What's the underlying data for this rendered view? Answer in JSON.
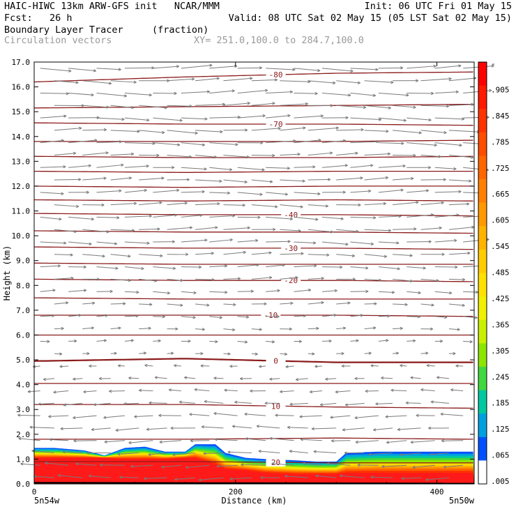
{
  "header": {
    "line1_left": "HAIC-HIWC 13km ARW-GFS init   NCAR/MMM",
    "line1_right": "Init: 06 UTC Fri 01 May 15",
    "line2_left": "Fcst:   26 h",
    "line2_right": "Valid: 08 UTC Sat 02 May 15 (05 LST Sat 02 May 15)",
    "line3_field": "Boundary Layer Tracer",
    "line3_units": "(fraction)",
    "line4_field": "Circulation vectors",
    "line4_xy": "XY= 251.0,100.0 to 284.7,100.0"
  },
  "colors": {
    "contour": "#8b1a1a",
    "vector": "#7a7a7a",
    "tracer_high": "#ff1a1a"
  },
  "chart_data": {
    "type": "cross-section",
    "title": "Boundary Layer Tracer",
    "xlabel": "Distance (km)",
    "ylabel": "Height (km)",
    "xlim": [
      0,
      437
    ],
    "ylim": [
      0,
      17
    ],
    "x_ticks": [
      "0",
      "200",
      "400"
    ],
    "x_tick_values": [
      0,
      200,
      400
    ],
    "x_end_labels": [
      "5n54w",
      "5n50w"
    ],
    "y_ticks": [
      "0.0",
      "1.0",
      "2.0",
      "3.0",
      "4.0",
      "5.0",
      "6.0",
      "7.0",
      "8.0",
      "9.0",
      "10.0",
      "11.0",
      "12.0",
      "13.0",
      "14.0",
      "15.0",
      "16.0",
      "17.0"
    ],
    "colorbar_labels": [
      "-",
      ".905",
      ".845",
      ".785",
      ".725",
      ".665",
      ".605",
      ".545",
      ".485",
      ".425",
      ".365",
      ".305",
      ".245",
      ".185",
      ".125",
      ".065",
      ".005"
    ],
    "colorbar_colors": [
      "#ff0000",
      "#ff1a00",
      "#ff3300",
      "#ff4d00",
      "#ff6600",
      "#ff8000",
      "#ff9900",
      "#ffb300",
      "#ffcc00",
      "#ffe000",
      "#f0f000",
      "#c8f000",
      "#8ce600",
      "#40d840",
      "#00c8a0",
      "#00a0e0",
      "#0050ff",
      "#ffffff"
    ],
    "temperature_contours": [
      {
        "label": "-80",
        "y": [
          16.2,
          16.4,
          16.55,
          16.6
        ],
        "label_x": 240
      },
      {
        "label": "",
        "y": [
          15.15,
          15.2,
          15.25,
          15.3
        ],
        "label_x": null
      },
      {
        "label": "-70",
        "y": [
          14.55,
          14.5,
          14.5,
          14.45
        ],
        "label_x": 240
      },
      {
        "label": "",
        "y": [
          13.8,
          13.8,
          13.8,
          13.85
        ],
        "label_x": null
      },
      {
        "label": "",
        "y": [
          13.2,
          13.15,
          13.15,
          13.2
        ],
        "label_x": null
      },
      {
        "label": "",
        "y": [
          12.6,
          12.55,
          12.6,
          12.6
        ],
        "label_x": null
      },
      {
        "label": "",
        "y": [
          12.0,
          11.95,
          12.0,
          12.0
        ],
        "label_x": null
      },
      {
        "label": "",
        "y": [
          11.45,
          11.4,
          11.45,
          11.4
        ],
        "label_x": null
      },
      {
        "label": "-40",
        "y": [
          10.9,
          10.85,
          10.85,
          10.8
        ],
        "label_x": 255
      },
      {
        "label": "",
        "y": [
          10.2,
          10.15,
          10.15,
          10.1
        ],
        "label_x": null
      },
      {
        "label": "-30",
        "y": [
          9.55,
          9.5,
          9.5,
          9.45
        ],
        "label_x": 255
      },
      {
        "label": "",
        "y": [
          8.9,
          8.85,
          8.85,
          8.85
        ],
        "label_x": null
      },
      {
        "label": "-20",
        "y": [
          8.25,
          8.2,
          8.2,
          8.15
        ],
        "label_x": 255
      },
      {
        "label": "",
        "y": [
          7.5,
          7.45,
          7.45,
          7.45
        ],
        "label_x": null
      },
      {
        "label": "-10",
        "y": [
          6.8,
          6.8,
          6.8,
          6.75
        ],
        "label_x": 235
      },
      {
        "label": "",
        "y": [
          6.0,
          6.0,
          6.0,
          6.0
        ],
        "label_x": null
      },
      {
        "label": "0",
        "y": [
          4.95,
          5.05,
          4.9,
          4.9
        ],
        "label_x": 240
      },
      {
        "label": "",
        "y": [
          4.05,
          4.05,
          4.05,
          4.05
        ],
        "label_x": null
      },
      {
        "label": "10",
        "y": [
          3.2,
          3.2,
          3.1,
          3.05
        ],
        "label_x": 240
      },
      {
        "label": "",
        "y": [
          1.8,
          1.8,
          1.85,
          1.8
        ],
        "label_x": null
      },
      {
        "label": "20",
        "y": [
          0.9,
          0.9,
          0.85,
          0.85
        ],
        "label_x": 240
      }
    ],
    "contour_x": [
      0,
      150,
      300,
      437
    ],
    "tracer_top_km": [
      1.45,
      1.45,
      1.35,
      1.15,
      1.45,
      1.5,
      1.3,
      1.3,
      1.6,
      1.6,
      1.25,
      1.05,
      1.0,
      0.95,
      0.9,
      0.9,
      1.25,
      1.3,
      1.3,
      1.3,
      1.3
    ],
    "tracer_x": [
      0,
      20,
      50,
      70,
      90,
      110,
      130,
      150,
      160,
      180,
      190,
      210,
      230,
      260,
      280,
      300,
      310,
      340,
      370,
      400,
      437
    ],
    "tracer_red_top_km": [
      1.05,
      1.05,
      1.05,
      1.05,
      1.0,
      1.0,
      1.0,
      1.05,
      1.05,
      0.8,
      0.6,
      0.55,
      0.45,
      0.4,
      0.4,
      0.4,
      0.45,
      0.45,
      0.45,
      0.45,
      0.45
    ],
    "winds": "upper levels westerly (rightward), lower levels easterly (leftward)"
  }
}
